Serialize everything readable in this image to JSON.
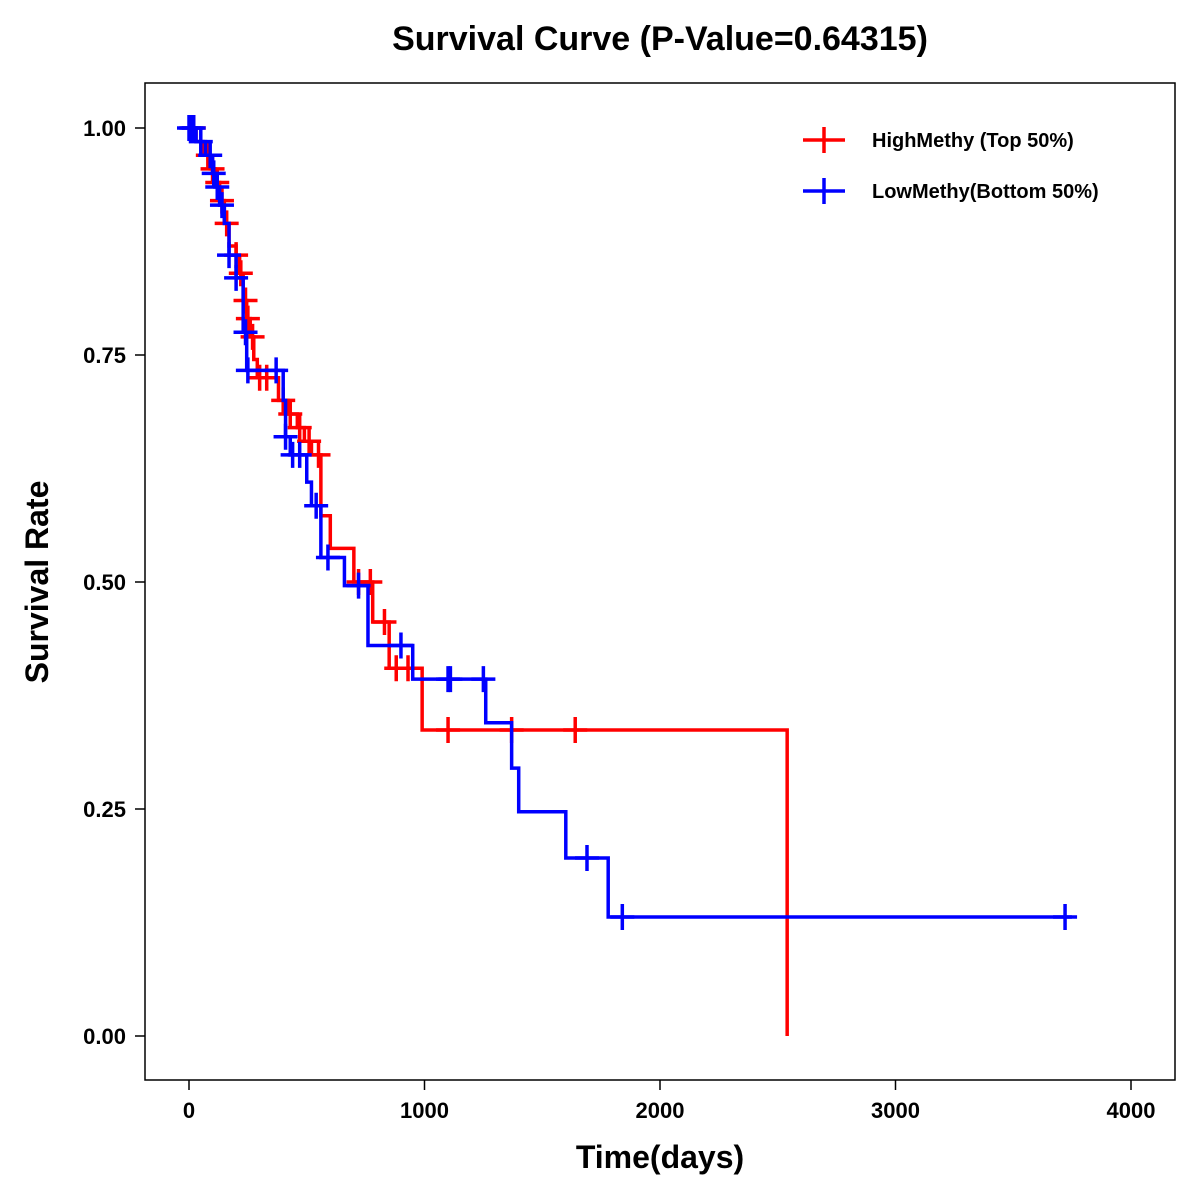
{
  "chart_data": {
    "type": "line",
    "title": "Survival Curve (P-Value=0.64315)",
    "xlabel": "Time(days)",
    "ylabel": "Survival Rate",
    "xlim": [
      -200,
      4150
    ],
    "ylim": [
      -0.095,
      1.1
    ],
    "xticks": [
      0,
      1000,
      2000,
      3000,
      4000
    ],
    "xtick_labels": [
      "0",
      "1000",
      "2000",
      "3000",
      "4000"
    ],
    "yticks": [
      0,
      0.25,
      0.5,
      0.75,
      1.0
    ],
    "ytick_labels": [
      "0.00",
      "0.25",
      "0.50",
      "0.75",
      "1.00"
    ],
    "grid": false,
    "legend_position": "top-right",
    "series": [
      {
        "name": "HighMethy (Top 50%)",
        "color": "#ff0000",
        "step_times": [
          0,
          30,
          60,
          90,
          110,
          130,
          150,
          170,
          200,
          215,
          230,
          245,
          260,
          275,
          290,
          380,
          420,
          460,
          490,
          520,
          560,
          600,
          700,
          780,
          850,
          990,
          2540
        ],
        "step_survival": [
          1.0,
          0.985,
          0.97,
          0.955,
          0.94,
          0.92,
          0.895,
          0.87,
          0.86,
          0.84,
          0.81,
          0.79,
          0.77,
          0.745,
          0.725,
          0.7,
          0.685,
          0.67,
          0.655,
          0.64,
          0.573,
          0.537,
          0.5,
          0.456,
          0.405,
          0.337,
          0.0
        ],
        "end_time": 2540,
        "censor_times": [
          20,
          80,
          100,
          120,
          140,
          160,
          200,
          220,
          240,
          250,
          270,
          300,
          330,
          400,
          430,
          470,
          510,
          550,
          720,
          770,
          830,
          880,
          930,
          1100,
          1370,
          1640
        ]
      },
      {
        "name": "LowMethy(Bottom 50%)",
        "color": "#0000ff",
        "step_times": [
          0,
          30,
          70,
          100,
          110,
          130,
          150,
          170,
          200,
          230,
          245,
          400,
          410,
          430,
          500,
          520,
          560,
          660,
          760,
          950,
          1260,
          1370,
          1400,
          1600,
          1780
        ],
        "step_survival": [
          1.0,
          0.985,
          0.97,
          0.95,
          0.935,
          0.915,
          0.895,
          0.86,
          0.835,
          0.775,
          0.733,
          0.7,
          0.66,
          0.64,
          0.61,
          0.584,
          0.527,
          0.496,
          0.43,
          0.393,
          0.345,
          0.295,
          0.247,
          0.196,
          0.131
        ],
        "end_time": 3749,
        "censor_times": [
          0,
          10,
          20,
          50,
          90,
          105,
          120,
          140,
          170,
          200,
          240,
          250,
          370,
          410,
          440,
          470,
          540,
          590,
          720,
          900,
          1100,
          1110,
          1250,
          1690,
          1840,
          3720
        ]
      }
    ]
  }
}
